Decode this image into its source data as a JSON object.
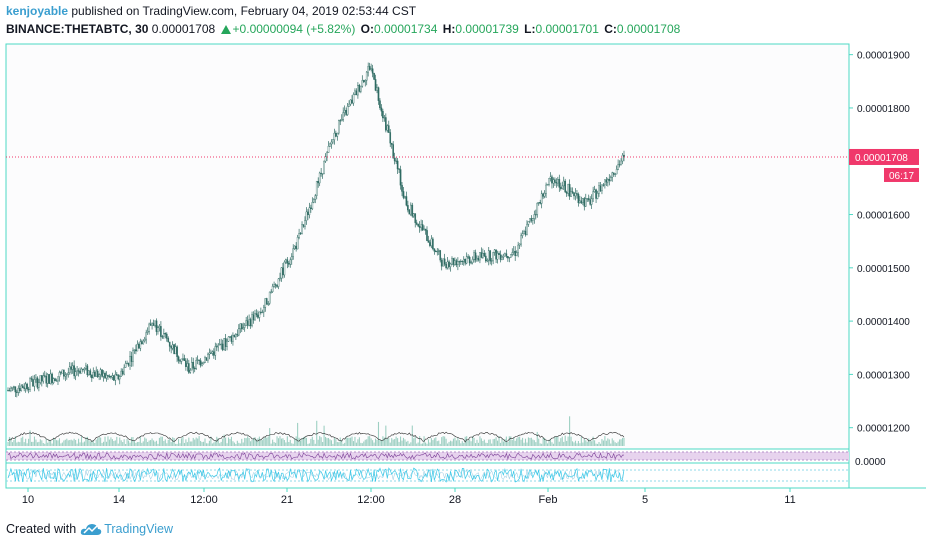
{
  "header": {
    "user": "kenjoyable",
    "published_text": " published on TradingView.com, February 04, 2019 02:53:44 CST",
    "symbol": "BINANCE:THETABTC, 30",
    "last": "0.00001708",
    "change": "+0.00000094 (+5.82%)",
    "o_label": "O:",
    "o": "0.00001734",
    "h_label": "H:",
    "h": "0.00001739",
    "l_label": "L:",
    "l": "0.00001701",
    "c_label": "C:",
    "c": "0.00001708"
  },
  "price_tag": {
    "value": "0.00001708",
    "countdown": "06:17"
  },
  "footer": {
    "created_with": "Created with",
    "brand": "TradingView"
  },
  "colors": {
    "accent": "#4dd9c4",
    "up": "#26a65b",
    "price_line": "#f0386b",
    "candle": "#2f6b63",
    "volume": "#9dcfc2",
    "rsi_fill": "#e7d3ee",
    "rsi_line": "#7b3f97",
    "stoch_line": "#3bc9e8"
  },
  "icons": [
    "up-triangle-icon",
    "tradingview-cloud-icon"
  ],
  "chart_data": {
    "type": "candlestick",
    "title": "BINANCE:THETABTC, 30",
    "y_ticks": [
      "0.00001900",
      "0.00001800",
      "0.00001600",
      "0.00001500",
      "0.00001400",
      "0.00001300",
      "0.00001200"
    ],
    "y_range": [
      1.16e-05,
      1.92e-05
    ],
    "x_ticks": [
      "10",
      "14",
      "12:00",
      "21",
      "12:00",
      "28",
      "Feb",
      "5",
      "11"
    ],
    "lower_panel_tick": "0.0000",
    "close_series_approx": [
      [
        "10",
        1.27e-05
      ],
      [
        "14",
        1.29e-05
      ],
      [
        "12:00",
        1.31e-05
      ],
      [
        "12:00",
        1.29e-05
      ],
      [
        "12:00",
        1.4e-05
      ],
      [
        "21",
        1.31e-05
      ],
      [
        "21",
        1.36e-05
      ],
      [
        "12:00",
        1.42e-05
      ],
      [
        "12:00",
        1.55e-05
      ],
      [
        "12:00",
        1.75e-05
      ],
      [
        "28",
        1.88e-05
      ],
      [
        "28",
        1.62e-05
      ],
      [
        "28",
        1.51e-05
      ],
      [
        "28",
        1.52e-05
      ],
      [
        "Feb",
        1.53e-05
      ],
      [
        "Feb",
        1.67e-05
      ],
      [
        "Feb",
        1.62e-05
      ],
      [
        "Feb",
        1.708e-05
      ]
    ],
    "last_price": 1.708e-05
  }
}
